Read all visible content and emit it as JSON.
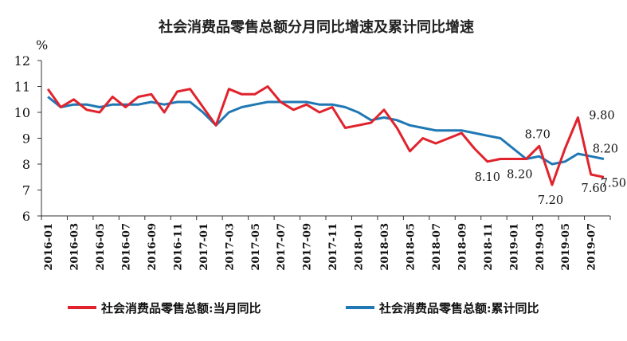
{
  "chart_data": {
    "type": "line",
    "title": "社会消费品零售总额分月同比增速及累计同比增速",
    "ylabel": "%",
    "ylim": [
      6,
      12
    ],
    "yticks": [
      6,
      7,
      8,
      9,
      10,
      11,
      12
    ],
    "grid": false,
    "legend_position": "bottom",
    "categories": [
      "2016-01",
      "2016-02",
      "2016-03",
      "2016-04",
      "2016-05",
      "2016-06",
      "2016-07",
      "2016-08",
      "2016-09",
      "2016-10",
      "2016-11",
      "2016-12",
      "2017-01",
      "2017-02",
      "2017-03",
      "2017-04",
      "2017-05",
      "2017-06",
      "2017-07",
      "2017-08",
      "2017-09",
      "2017-10",
      "2017-11",
      "2017-12",
      "2018-01",
      "2018-02",
      "2018-03",
      "2018-04",
      "2018-05",
      "2018-06",
      "2018-07",
      "2018-08",
      "2018-09",
      "2018-10",
      "2018-11",
      "2018-12",
      "2019-01",
      "2019-02",
      "2019-03",
      "2019-04",
      "2019-05",
      "2019-06",
      "2019-07",
      "2019-08"
    ],
    "tick_labels": [
      "2016-01",
      "2016-03",
      "2016-05",
      "2016-07",
      "2016-09",
      "2016-11",
      "2017-01",
      "2017-03",
      "2017-05",
      "2017-07",
      "2017-09",
      "2017-11",
      "2018-01",
      "2018-03",
      "2018-05",
      "2018-07",
      "2018-09",
      "2018-11",
      "2019-01",
      "2019-03",
      "2019-05",
      "2019-07"
    ],
    "series": [
      {
        "name": "社会消费品零售总额:当月同比",
        "color": "#e0232d",
        "values": [
          10.9,
          10.2,
          10.5,
          10.1,
          10.0,
          10.6,
          10.2,
          10.6,
          10.7,
          10.0,
          10.8,
          10.9,
          10.2,
          9.5,
          10.9,
          10.7,
          10.7,
          11.0,
          10.4,
          10.1,
          10.3,
          10.0,
          10.2,
          9.4,
          9.5,
          9.6,
          10.1,
          9.4,
          8.5,
          9.0,
          8.8,
          9.0,
          9.2,
          8.6,
          8.1,
          8.2,
          8.2,
          8.2,
          8.7,
          7.2,
          8.6,
          9.8,
          7.6,
          7.5
        ],
        "data_labels": [
          {
            "index": 34,
            "text": "8.10"
          },
          {
            "index": 36,
            "text": "8.20"
          },
          {
            "index": 38,
            "text": "8.70"
          },
          {
            "index": 39,
            "text": "7.20"
          },
          {
            "index": 41,
            "text": "9.80"
          },
          {
            "index": 42,
            "text": "7.60"
          },
          {
            "index": 43,
            "text": "7.50"
          }
        ]
      },
      {
        "name": "社会消费品零售总额:累计同比",
        "color": "#1f77b4",
        "values": [
          10.6,
          10.2,
          10.3,
          10.3,
          10.2,
          10.3,
          10.3,
          10.3,
          10.4,
          10.3,
          10.4,
          10.4,
          10.0,
          9.5,
          10.0,
          10.2,
          10.3,
          10.4,
          10.4,
          10.4,
          10.4,
          10.3,
          10.3,
          10.2,
          10.0,
          9.7,
          9.8,
          9.7,
          9.5,
          9.4,
          9.3,
          9.3,
          9.3,
          9.2,
          9.1,
          9.0,
          8.6,
          8.2,
          8.3,
          8.0,
          8.1,
          8.4,
          8.3,
          8.2
        ],
        "data_labels": [
          {
            "index": 43,
            "text": "8.20"
          }
        ]
      }
    ]
  }
}
